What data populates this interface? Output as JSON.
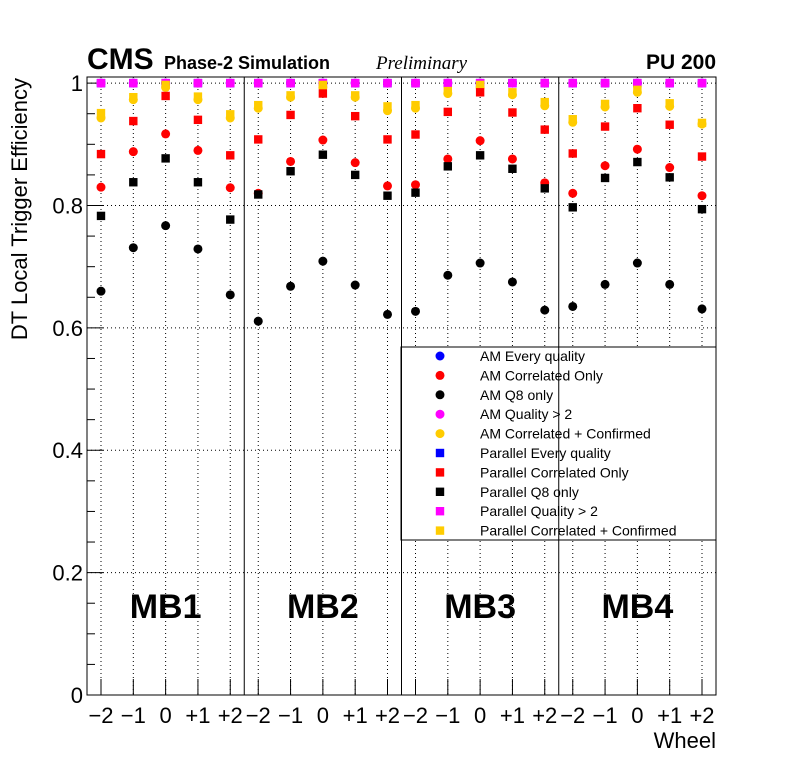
{
  "header": {
    "experiment": "CMS",
    "status": "Phase-2 Simulation",
    "tag": "Preliminary",
    "pileup": "PU 200"
  },
  "chart_data": {
    "type": "scatter",
    "title": "",
    "xlabel": "Wheel",
    "ylabel": "DT Local Trigger Efficiency",
    "ylim": [
      0,
      1.01
    ],
    "yticks": [
      "0",
      "0.2",
      "0.4",
      "0.6",
      "0.8",
      "1"
    ],
    "ytick_values": [
      0,
      0.2,
      0.4,
      0.6,
      0.8,
      1.0
    ],
    "wheels": [
      "−2",
      "−1",
      "0",
      "+1",
      "+2"
    ],
    "stations": [
      "MB1",
      "MB2",
      "MB3",
      "MB4"
    ],
    "grid": true,
    "legend": [
      {
        "label": "AM Every quality",
        "series": "am_every"
      },
      {
        "label": "AM Correlated Only",
        "series": "am_corr"
      },
      {
        "label": "AM Q8 only",
        "series": "am_q8"
      },
      {
        "label": "AM Quality > 2",
        "series": "am_qgt2"
      },
      {
        "label": "AM Correlated + Confirmed",
        "series": "am_cc"
      },
      {
        "label": "Parallel Every quality",
        "series": "par_every"
      },
      {
        "label": "Parallel Correlated Only",
        "series": "par_corr"
      },
      {
        "label": "Parallel Q8 only",
        "series": "par_q8"
      },
      {
        "label": "Parallel Quality > 2",
        "series": "par_qgt2"
      },
      {
        "label": "Parallel Correlated + Confirmed",
        "series": "par_cc"
      }
    ],
    "series": [
      {
        "id": "am_every",
        "name": "AM Every quality",
        "marker": "circle",
        "color": "#0000ff",
        "values": [
          [
            1,
            1,
            1,
            1,
            1
          ],
          [
            1,
            1,
            1,
            1,
            1
          ],
          [
            1,
            1,
            1,
            1,
            1
          ],
          [
            1,
            1,
            1,
            1,
            1
          ]
        ]
      },
      {
        "id": "par_every",
        "name": "Parallel Every quality",
        "marker": "square",
        "color": "#0000ff",
        "values": [
          [
            1,
            1,
            1,
            1,
            1
          ],
          [
            1,
            1,
            1,
            1,
            1
          ],
          [
            1,
            1,
            1,
            1,
            1
          ],
          [
            1,
            1,
            1,
            1,
            1
          ]
        ]
      },
      {
        "id": "am_qgt2",
        "name": "AM Quality > 2",
        "marker": "circle",
        "color": "#ff00ff",
        "values": [
          [
            1,
            1,
            1,
            1,
            1
          ],
          [
            1,
            1,
            1,
            1,
            1
          ],
          [
            1,
            1,
            1,
            1,
            1
          ],
          [
            1,
            1,
            1,
            1,
            1
          ]
        ]
      },
      {
        "id": "par_qgt2",
        "name": "Parallel Quality > 2",
        "marker": "square",
        "color": "#ff00ff",
        "values": [
          [
            1,
            1,
            1,
            1,
            1
          ],
          [
            1,
            1,
            1,
            1,
            1
          ],
          [
            1,
            1,
            1,
            1,
            1
          ],
          [
            1,
            1,
            1,
            1,
            1
          ]
        ]
      },
      {
        "id": "am_cc",
        "name": "AM Correlated + Confirmed",
        "marker": "circle",
        "color": "#ffcc00",
        "values": [
          [
            0.943,
            0.973,
            0.993,
            0.973,
            0.943
          ],
          [
            0.959,
            0.977,
            0.993,
            0.977,
            0.955
          ],
          [
            0.959,
            0.983,
            0.993,
            0.981,
            0.963
          ],
          [
            0.936,
            0.961,
            0.985,
            0.962,
            0.933
          ]
        ]
      },
      {
        "id": "par_cc",
        "name": "Parallel Correlated + Confirmed",
        "marker": "square",
        "color": "#ffcc00",
        "values": [
          [
            0.951,
            0.977,
            0.997,
            0.978,
            0.949
          ],
          [
            0.964,
            0.98,
            0.997,
            0.98,
            0.962
          ],
          [
            0.964,
            0.987,
            0.997,
            0.985,
            0.969
          ],
          [
            0.941,
            0.966,
            0.989,
            0.967,
            0.935
          ]
        ]
      },
      {
        "id": "am_corr",
        "name": "AM Correlated Only",
        "marker": "circle",
        "color": "#ff0000",
        "values": [
          [
            0.83,
            0.888,
            0.917,
            0.89,
            0.829
          ],
          [
            0.82,
            0.872,
            0.907,
            0.87,
            0.832
          ],
          [
            0.834,
            0.876,
            0.906,
            0.876,
            0.837
          ],
          [
            0.82,
            0.865,
            0.892,
            0.862,
            0.816
          ]
        ]
      },
      {
        "id": "par_corr",
        "name": "Parallel Correlated Only",
        "marker": "square",
        "color": "#ff0000",
        "values": [
          [
            0.884,
            0.938,
            0.979,
            0.94,
            0.882
          ],
          [
            0.908,
            0.948,
            0.983,
            0.946,
            0.908
          ],
          [
            0.916,
            0.953,
            0.985,
            0.952,
            0.924
          ],
          [
            0.885,
            0.929,
            0.959,
            0.932,
            0.88
          ]
        ]
      },
      {
        "id": "am_q8",
        "name": "AM Q8 only",
        "marker": "circle",
        "color": "#000000",
        "values": [
          [
            0.66,
            0.731,
            0.767,
            0.729,
            0.654
          ],
          [
            0.611,
            0.668,
            0.709,
            0.67,
            0.622
          ],
          [
            0.627,
            0.686,
            0.706,
            0.675,
            0.629
          ],
          [
            0.635,
            0.671,
            0.706,
            0.671,
            0.631
          ]
        ]
      },
      {
        "id": "par_q8",
        "name": "Parallel Q8 only",
        "marker": "square",
        "color": "#000000",
        "values": [
          [
            0.783,
            0.838,
            0.877,
            0.838,
            0.777
          ],
          [
            0.818,
            0.856,
            0.883,
            0.85,
            0.816
          ],
          [
            0.821,
            0.864,
            0.882,
            0.86,
            0.828
          ],
          [
            0.797,
            0.845,
            0.871,
            0.846,
            0.794
          ]
        ]
      }
    ]
  }
}
